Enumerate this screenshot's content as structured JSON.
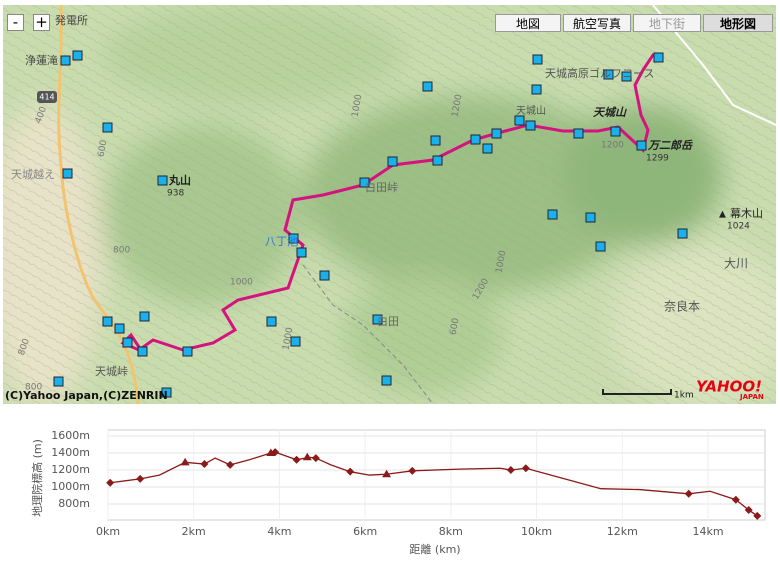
{
  "map": {
    "zoom": [
      "-",
      "+"
    ],
    "buttons": [
      "地図",
      "航空写真",
      "地下街",
      "地形図"
    ],
    "labels": [
      "発電所",
      "浄蓮滝",
      "414",
      "400",
      "600",
      "天城越え",
      "丸山",
      "938",
      "800",
      "1000",
      "八丁池",
      "白田峠",
      "白田",
      "天城高原ゴルフコース",
      "天城山",
      "万二郎岳",
      "1299",
      "天城山",
      "幕木山",
      "1024",
      "大川",
      "奈良本",
      "1200",
      "1200",
      "1000",
      "1000",
      "600",
      "800",
      "天城峠",
      "800",
      "1000",
      "1200"
    ],
    "scale": "1km",
    "logo": "YAHOO!",
    "logo_sub": "JAPAN",
    "attribution": "(C)Yahoo Japan,(C)ZENRIN"
  },
  "chart_data": {
    "type": "line",
    "ylabel": "地理院標高 (m)",
    "xlabel": "距離 (km)",
    "xlim": [
      0,
      15.33
    ],
    "ylim": [
      612,
      1670
    ],
    "xticks": [
      {
        "value": 0,
        "label": "0km"
      },
      {
        "value": 2,
        "label": "2km"
      },
      {
        "value": 4,
        "label": "4km"
      },
      {
        "value": 6,
        "label": "6km"
      },
      {
        "value": 8,
        "label": "8km"
      },
      {
        "value": 10,
        "label": "10km"
      },
      {
        "value": 12,
        "label": "12km"
      },
      {
        "value": 14,
        "label": "14km"
      }
    ],
    "yticks": [
      {
        "value": 800,
        "label": "800m"
      },
      {
        "value": 1000,
        "label": "1000m"
      },
      {
        "value": 1200,
        "label": "1200m"
      },
      {
        "value": 1400,
        "label": "1400m"
      },
      {
        "value": 1600,
        "label": "1600m"
      }
    ],
    "grid": true,
    "line": {
      "color": "#8b1a1a",
      "x": [
        0.05,
        0.75,
        1.2,
        1.8,
        2.25,
        2.5,
        2.85,
        3.3,
        3.8,
        3.9,
        4.4,
        4.7,
        4.85,
        5.2,
        5.65,
        6.1,
        6.5,
        7.1,
        8.2,
        9.15,
        9.4,
        9.75,
        10.55,
        11.5,
        12.4,
        13.55,
        14.05,
        14.65,
        14.95,
        15.15
      ],
      "y": [
        1050,
        1095,
        1140,
        1290,
        1270,
        1340,
        1260,
        1320,
        1400,
        1410,
        1320,
        1350,
        1340,
        1260,
        1180,
        1140,
        1150,
        1190,
        1210,
        1220,
        1200,
        1220,
        1110,
        980,
        970,
        920,
        950,
        850,
        730,
        660
      ]
    },
    "markers": {
      "color": "#8b1a1a",
      "x": [
        0.05,
        0.75,
        1.8,
        2.25,
        2.85,
        3.8,
        3.9,
        4.4,
        4.65,
        4.85,
        5.65,
        6.5,
        7.1,
        9.4,
        9.75,
        13.55,
        14.65,
        14.95,
        15.15
      ],
      "y": [
        1050,
        1095,
        1290,
        1270,
        1260,
        1400,
        1410,
        1320,
        1350,
        1340,
        1180,
        1150,
        1190,
        1200,
        1220,
        920,
        850,
        730,
        660
      ],
      "symbols": [
        "diamond",
        "diamond",
        "triangle",
        "diamond",
        "diamond",
        "triangle",
        "diamond",
        "diamond",
        "triangle",
        "diamond",
        "diamond",
        "triangle",
        "diamond",
        "diamond",
        "diamond",
        "diamond",
        "diamond",
        "diamond",
        "diamond"
      ]
    }
  }
}
